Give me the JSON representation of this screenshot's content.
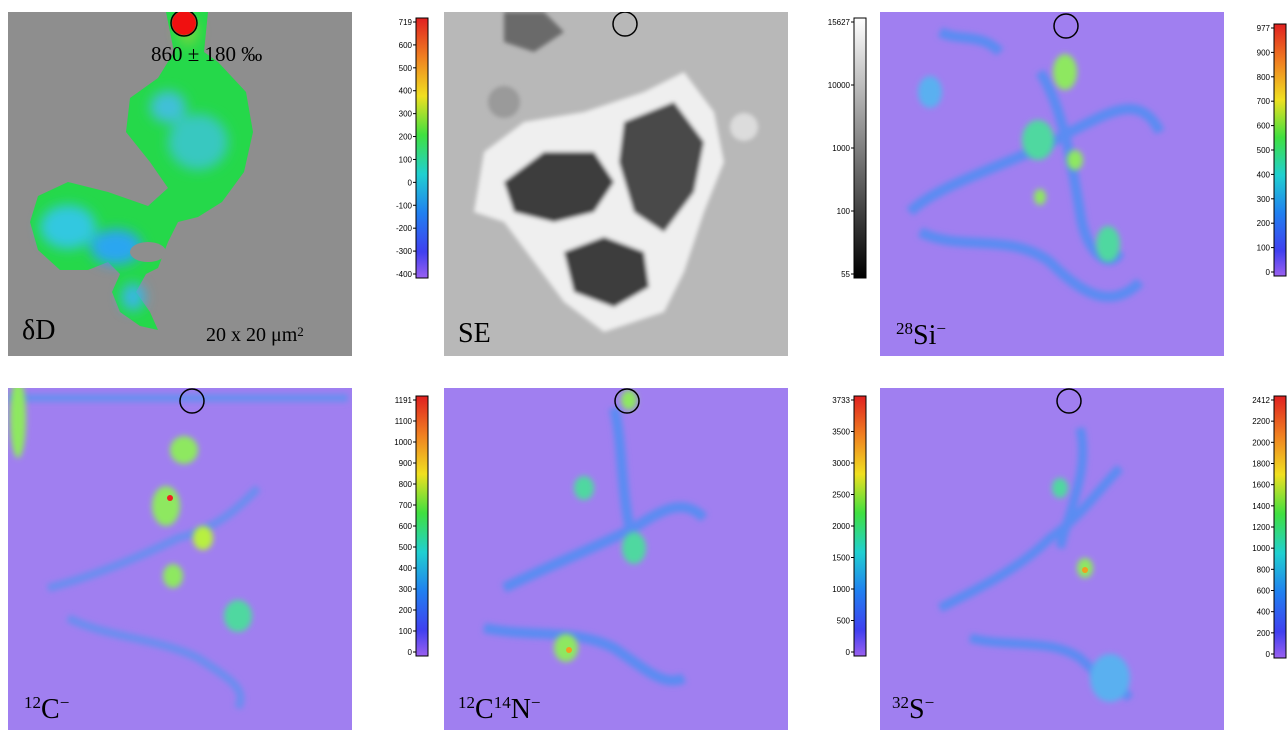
{
  "panels": [
    {
      "id": "dD",
      "label_main": "δD",
      "label_sup": "",
      "label_tail": "",
      "bg": "#8e8e8e"
    },
    {
      "id": "SE",
      "label_main": "SE",
      "label_sup": "",
      "label_tail": "",
      "bg": "#c8c8c8"
    },
    {
      "id": "Si",
      "label_sup": "28",
      "label_main": "Si",
      "label_tail": "−",
      "bg": "#a07ff0"
    },
    {
      "id": "C",
      "label_sup": "12",
      "label_main": "C",
      "label_tail": "−",
      "bg": "#a07ff0"
    },
    {
      "id": "CN",
      "label_sup": "12",
      "label_main": "C",
      "label_sup2": "14",
      "label_main2": "N",
      "label_tail": "−",
      "bg": "#a07ff0"
    },
    {
      "id": "S",
      "label_sup": "32",
      "label_main": "S",
      "label_tail": "−",
      "bg": "#a07ff0"
    }
  ],
  "annotations": {
    "dD_value": "860 ± 180 ‰",
    "scale_text": "20 x 20 μm",
    "scale_sup": "2"
  },
  "colorbars": [
    {
      "id": "cb-dD",
      "type": "rainbow",
      "ticks": [
        "719",
        "600",
        "500",
        "400",
        "300",
        "200",
        "100",
        "0",
        "-100",
        "-200",
        "-300",
        "-400"
      ]
    },
    {
      "id": "cb-SE",
      "type": "gray",
      "ticks": [
        "15627",
        "10000",
        "1000",
        "100",
        "55"
      ]
    },
    {
      "id": "cb-Si",
      "type": "rainbow",
      "ticks": [
        "977",
        "900",
        "800",
        "700",
        "600",
        "500",
        "400",
        "300",
        "200",
        "100",
        "0"
      ]
    },
    {
      "id": "cb-C",
      "type": "rainbow",
      "ticks": [
        "1191",
        "1100",
        "1000",
        "900",
        "800",
        "700",
        "600",
        "500",
        "400",
        "300",
        "200",
        "100",
        "0"
      ]
    },
    {
      "id": "cb-CN",
      "type": "rainbow",
      "ticks": [
        "3733",
        "3500",
        "3000",
        "2500",
        "2000",
        "1500",
        "1000",
        "500",
        "0"
      ]
    },
    {
      "id": "cb-S",
      "type": "rainbow",
      "ticks": [
        "2412",
        "2200",
        "2000",
        "1800",
        "1600",
        "1400",
        "1200",
        "1000",
        "800",
        "600",
        "400",
        "200",
        "0"
      ]
    }
  ]
}
